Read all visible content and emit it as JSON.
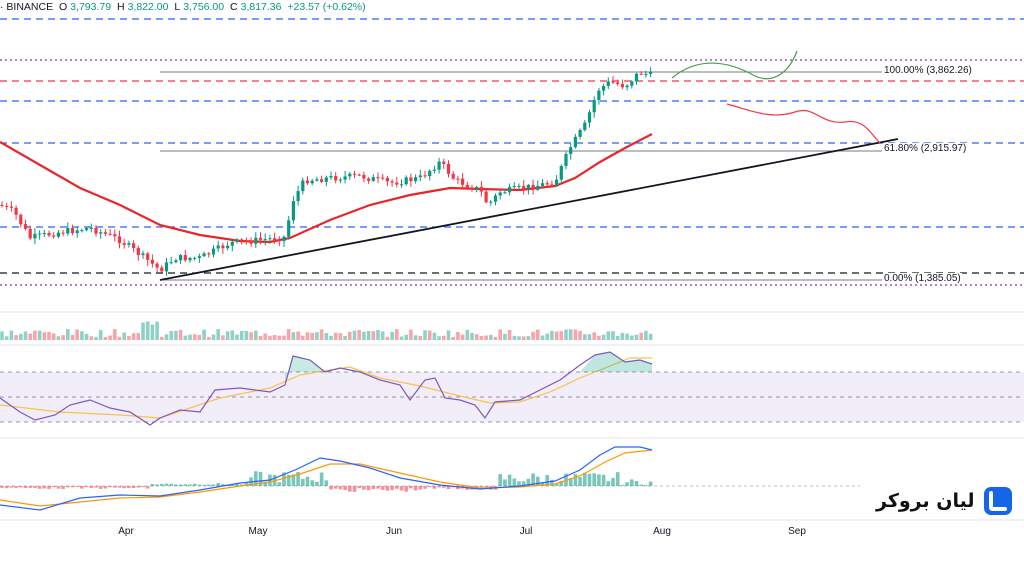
{
  "header": {
    "symbol": "· BINANCE",
    "open_label": "O",
    "open": "3,793.79",
    "high_label": "H",
    "high": "3,822.00",
    "low_label": "L",
    "low": "3,756.00",
    "close_label": "C",
    "close": "3,817.36",
    "change": "+23.57 (+0.62%)"
  },
  "fibonacci": {
    "levels": [
      {
        "label": "100.00% (3,862.26)",
        "value": 3862.26
      },
      {
        "label": "61.80% (2,915.97)",
        "value": 2915.97
      },
      {
        "label": "0.00% (1,385.05)",
        "value": 1385.05
      }
    ]
  },
  "x_axis": {
    "months": [
      "Apr",
      "May",
      "Jun",
      "Jul",
      "Aug",
      "Sep"
    ]
  },
  "colors": {
    "up": "#089981",
    "down": "#f23645",
    "ma": "#e8262a",
    "trendline": "#131722",
    "blue_dashed": "#2962ff",
    "purple_dotted": "#9c27b0",
    "rsi": "#7e57c2",
    "rsi_ma": "#f7c34a",
    "macd": "#2962ff",
    "signal": "#ff9800"
  },
  "brand": {
    "name": "لیان بروکر",
    "color": "#1565e8"
  },
  "chart_data": {
    "type": "candlestick",
    "panes": [
      "price",
      "volume",
      "rsi",
      "macd"
    ],
    "price_levels": {
      "fib_100": 3862.26,
      "fib_61_8": 2915.97,
      "fib_0": 1385.05
    },
    "last_bar": {
      "open": 3793.79,
      "high": 3822.0,
      "low": 3756.0,
      "close": 3817.36,
      "change": 23.57,
      "change_pct": 0.62
    },
    "x_ticks": [
      "Apr",
      "May",
      "Jun",
      "Jul",
      "Aug",
      "Sep"
    ],
    "grid": false,
    "indicators": [
      "moving-average",
      "volume",
      "rsi",
      "macd"
    ],
    "drawings": [
      "rising-trendline",
      "fibonacci-retracement",
      "horizontal-dashed-levels",
      "projection-paths"
    ]
  }
}
